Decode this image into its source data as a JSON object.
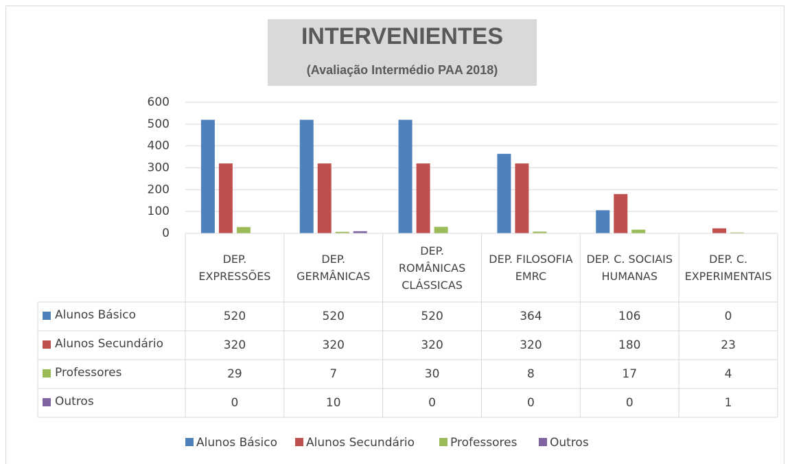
{
  "chart_data": {
    "type": "bar",
    "title": "INTERVENIENTES",
    "subtitle": "(Avaliação Intermédio PAA 2018)",
    "categories": [
      "DEP. EXPRESSÕES",
      "DEP. GERMÂNICAS",
      "DEP. ROMÂNICAS CLÁSSICAS",
      "DEP. FILOSOFIA EMRC",
      "DEP. C. SOCIAIS HUMANAS",
      "DEP. C. EXPERIMENTAIS"
    ],
    "series": [
      {
        "name": "Alunos Básico",
        "color": "#4f81bd",
        "values": [
          520,
          520,
          520,
          364,
          106,
          0
        ]
      },
      {
        "name": "Alunos Secundário",
        "color": "#c0504d",
        "values": [
          320,
          320,
          320,
          320,
          180,
          23
        ]
      },
      {
        "name": "Professores",
        "color": "#9bbb59",
        "values": [
          29,
          7,
          30,
          8,
          17,
          4
        ]
      },
      {
        "name": "Outros",
        "color": "#8064a2",
        "values": [
          0,
          10,
          0,
          0,
          0,
          1
        ]
      }
    ],
    "ylim": [
      0,
      600
    ],
    "yticks": [
      0,
      100,
      200,
      300,
      400,
      500,
      600
    ],
    "grid": true,
    "legend": "bottom"
  }
}
